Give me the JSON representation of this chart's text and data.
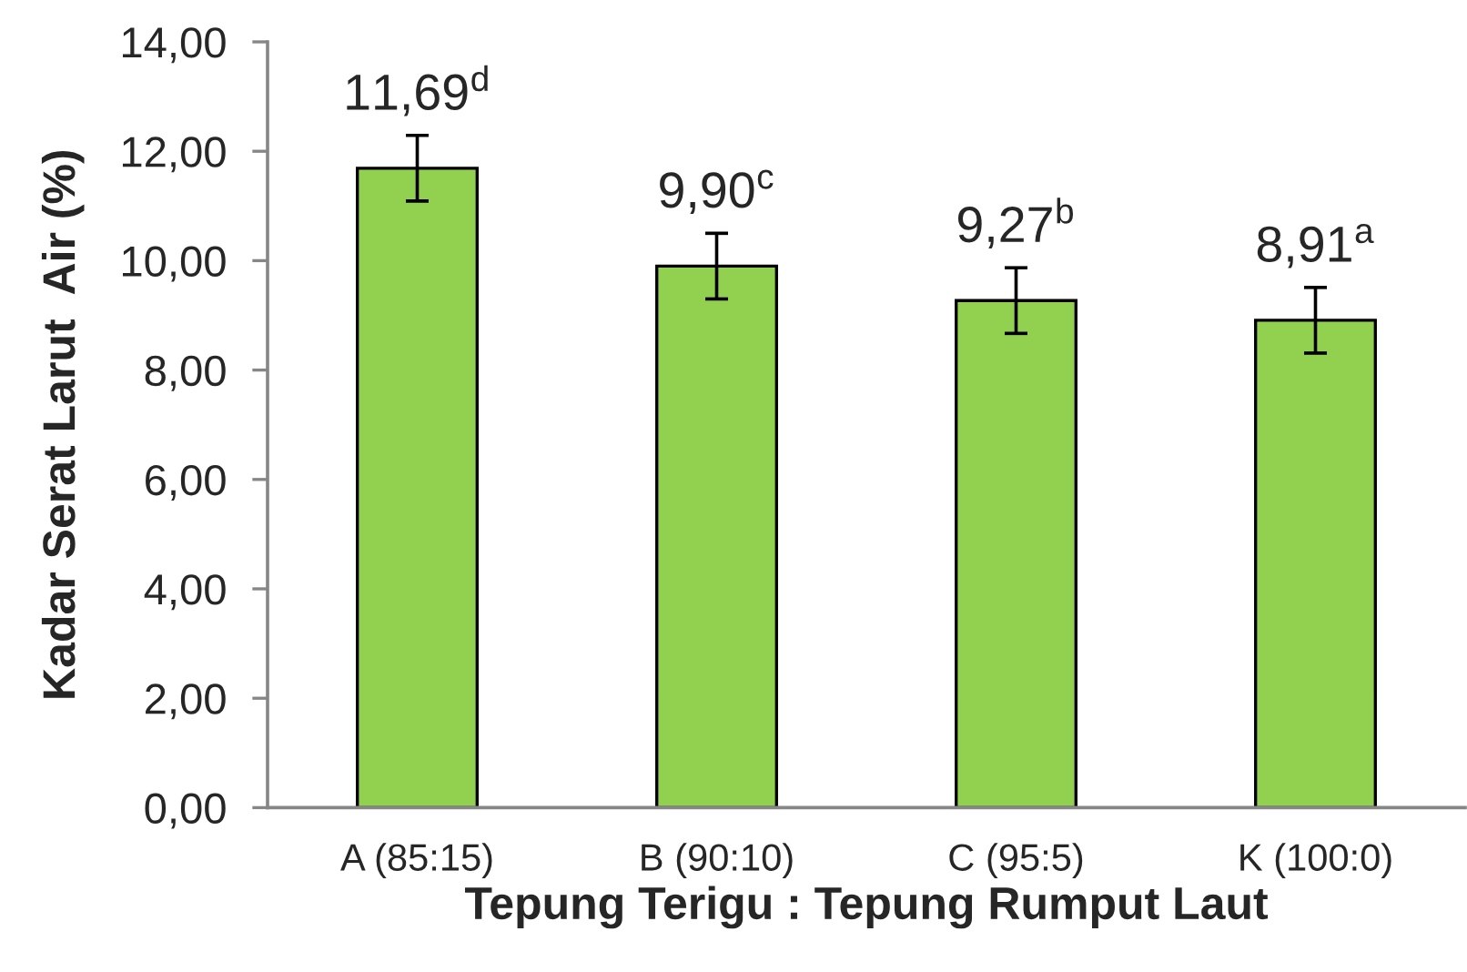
{
  "chart_data": {
    "type": "bar",
    "xlabel": "Tepung Terigu : Tepung Rumput Laut",
    "ylabel": "Kadar Serat Larut  Air (%)",
    "categories": [
      "A (85:15)",
      "B (90:10)",
      "C (95:5)",
      "K (100:0)"
    ],
    "values": [
      11.69,
      9.9,
      9.27,
      8.91
    ],
    "color": "#92d050",
    "errors": [
      0.6,
      0.6,
      0.6,
      0.6
    ],
    "value_labels": [
      "11,69$^{d}$",
      "9,90$^{c}$",
      "9,27$^{b}$",
      "8,91$^{a}$"
    ],
    "ylim": [
      0,
      14
    ],
    "yticks": [
      {
        "value": 0,
        "label": "0,00"
      },
      {
        "value": 2,
        "label": "2,00"
      },
      {
        "value": 4,
        "label": "4,00"
      },
      {
        "value": 6,
        "label": "6,00"
      },
      {
        "value": 8,
        "label": "8,00"
      },
      {
        "value": 10,
        "label": "10,00"
      },
      {
        "value": 12,
        "label": "12,00"
      },
      {
        "value": 14,
        "label": "14,00"
      }
    ],
    "grid": false
  }
}
